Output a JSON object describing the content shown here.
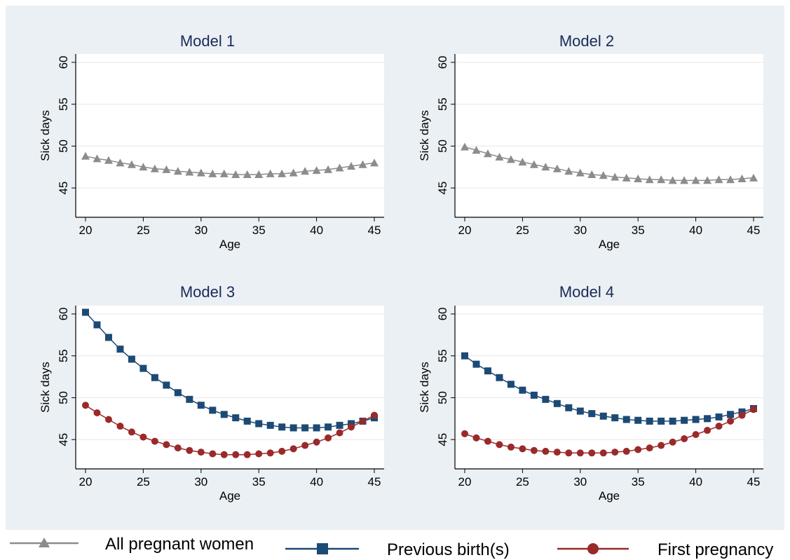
{
  "colors": {
    "background_outer": "#eaf0f3",
    "plot_area": "#ffffff",
    "all_pregnant": "#8c8c8c",
    "previous_birth": "#1c4a74",
    "first_pregnancy": "#9a2a2a",
    "title": "#1a2a5a"
  },
  "legend": {
    "items": [
      {
        "label": "All pregnant women",
        "marker": "triangle",
        "color": "#8c8c8c"
      },
      {
        "label": "Previous birth(s)",
        "marker": "square",
        "color": "#1c4a74"
      },
      {
        "label": "First pregnancy",
        "marker": "circle",
        "color": "#9a2a2a"
      }
    ]
  },
  "chart_data": [
    {
      "type": "line",
      "title": "Model 1",
      "xlabel": "Age",
      "ylabel": "Sick days",
      "xlim": [
        20,
        45
      ],
      "ylim": [
        41.5,
        61
      ],
      "xticks": [
        20,
        25,
        30,
        35,
        40,
        45
      ],
      "yticks": [
        45,
        50,
        55,
        60
      ],
      "grid": "horizontal",
      "x": [
        20,
        21,
        22,
        23,
        24,
        25,
        26,
        27,
        28,
        29,
        30,
        31,
        32,
        33,
        34,
        35,
        36,
        37,
        38,
        39,
        40,
        41,
        42,
        43,
        44,
        45
      ],
      "series": [
        {
          "key": "all",
          "marker": "triangle",
          "values": [
            48.8,
            48.5,
            48.3,
            48.0,
            47.8,
            47.5,
            47.3,
            47.2,
            47.0,
            46.9,
            46.8,
            46.7,
            46.7,
            46.6,
            46.6,
            46.6,
            46.7,
            46.7,
            46.8,
            47.0,
            47.1,
            47.2,
            47.4,
            47.6,
            47.8,
            48.0
          ]
        }
      ]
    },
    {
      "type": "line",
      "title": "Model 2",
      "xlabel": "Age",
      "ylabel": "Sick days",
      "xlim": [
        20,
        45
      ],
      "ylim": [
        41.5,
        61
      ],
      "xticks": [
        20,
        25,
        30,
        35,
        40,
        45
      ],
      "yticks": [
        45,
        50,
        55,
        60
      ],
      "grid": "horizontal",
      "x": [
        20,
        21,
        22,
        23,
        24,
        25,
        26,
        27,
        28,
        29,
        30,
        31,
        32,
        33,
        34,
        35,
        36,
        37,
        38,
        39,
        40,
        41,
        42,
        43,
        44,
        45
      ],
      "series": [
        {
          "key": "all",
          "marker": "triangle",
          "values": [
            49.9,
            49.5,
            49.1,
            48.7,
            48.4,
            48.1,
            47.8,
            47.5,
            47.3,
            47.0,
            46.8,
            46.6,
            46.5,
            46.3,
            46.2,
            46.1,
            46.0,
            46.0,
            45.9,
            45.9,
            45.9,
            45.9,
            46.0,
            46.0,
            46.1,
            46.2
          ]
        }
      ]
    },
    {
      "type": "line",
      "title": "Model 3",
      "xlabel": "Age",
      "ylabel": "Sick days",
      "xlim": [
        20,
        45
      ],
      "ylim": [
        41.5,
        61
      ],
      "xticks": [
        20,
        25,
        30,
        35,
        40,
        45
      ],
      "yticks": [
        45,
        50,
        55,
        60
      ],
      "grid": "horizontal",
      "x": [
        20,
        21,
        22,
        23,
        24,
        25,
        26,
        27,
        28,
        29,
        30,
        31,
        32,
        33,
        34,
        35,
        36,
        37,
        38,
        39,
        40,
        41,
        42,
        43,
        44,
        45
      ],
      "series": [
        {
          "key": "previous",
          "marker": "square",
          "values": [
            60.2,
            58.7,
            57.2,
            55.8,
            54.6,
            53.5,
            52.4,
            51.5,
            50.6,
            49.8,
            49.1,
            48.5,
            48.0,
            47.6,
            47.2,
            46.9,
            46.7,
            46.5,
            46.4,
            46.4,
            46.4,
            46.5,
            46.7,
            46.9,
            47.2,
            47.6
          ]
        },
        {
          "key": "first",
          "marker": "circle",
          "values": [
            49.1,
            48.2,
            47.4,
            46.6,
            45.9,
            45.3,
            44.8,
            44.4,
            44.0,
            43.7,
            43.5,
            43.3,
            43.2,
            43.2,
            43.2,
            43.3,
            43.4,
            43.6,
            43.9,
            44.3,
            44.7,
            45.2,
            45.8,
            46.5,
            47.2,
            47.9
          ]
        }
      ]
    },
    {
      "type": "line",
      "title": "Model 4",
      "xlabel": "Age",
      "ylabel": "Sick days",
      "xlim": [
        20,
        45
      ],
      "ylim": [
        41.5,
        61
      ],
      "xticks": [
        20,
        25,
        30,
        35,
        40,
        45
      ],
      "yticks": [
        45,
        50,
        55,
        60
      ],
      "grid": "horizontal",
      "x": [
        20,
        21,
        22,
        23,
        24,
        25,
        26,
        27,
        28,
        29,
        30,
        31,
        32,
        33,
        34,
        35,
        36,
        37,
        38,
        39,
        40,
        41,
        42,
        43,
        44,
        45
      ],
      "series": [
        {
          "key": "previous",
          "marker": "square",
          "values": [
            55.0,
            54.0,
            53.2,
            52.4,
            51.6,
            50.9,
            50.3,
            49.8,
            49.3,
            48.8,
            48.4,
            48.1,
            47.8,
            47.6,
            47.4,
            47.3,
            47.2,
            47.2,
            47.2,
            47.3,
            47.4,
            47.5,
            47.7,
            48.0,
            48.3,
            48.7
          ]
        },
        {
          "key": "first",
          "marker": "circle",
          "values": [
            45.7,
            45.2,
            44.8,
            44.4,
            44.1,
            43.9,
            43.7,
            43.6,
            43.5,
            43.4,
            43.4,
            43.4,
            43.4,
            43.5,
            43.6,
            43.8,
            44.0,
            44.3,
            44.7,
            45.1,
            45.6,
            46.1,
            46.6,
            47.2,
            47.9,
            48.6
          ]
        }
      ]
    }
  ]
}
